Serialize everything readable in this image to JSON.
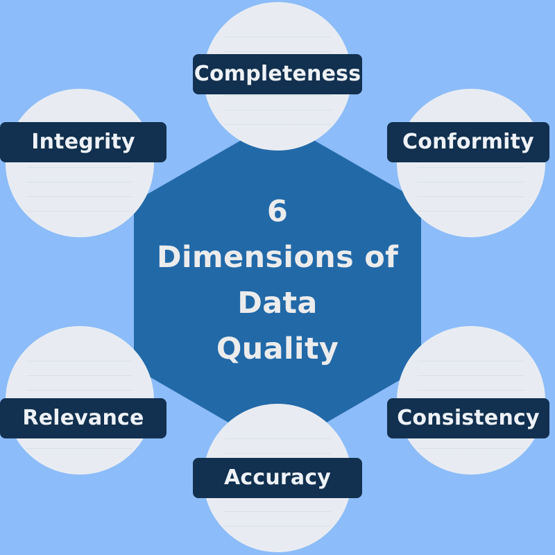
{
  "title_lines": [
    "6",
    "Dimensions of",
    "Data",
    "Quality"
  ],
  "dimensions": {
    "completeness": "Completeness",
    "conformity": "Conformity",
    "consistency": "Consistency",
    "accuracy": "Accuracy",
    "relevance": "Relevance",
    "integrity": "Integrity"
  },
  "colors": {
    "background": "#8cbcf9",
    "hexagon": "#2269a8",
    "circle": "#e8ecf2",
    "label_bg": "#12304f",
    "label_text": "#eef2f7",
    "title_text": "#ececec"
  }
}
